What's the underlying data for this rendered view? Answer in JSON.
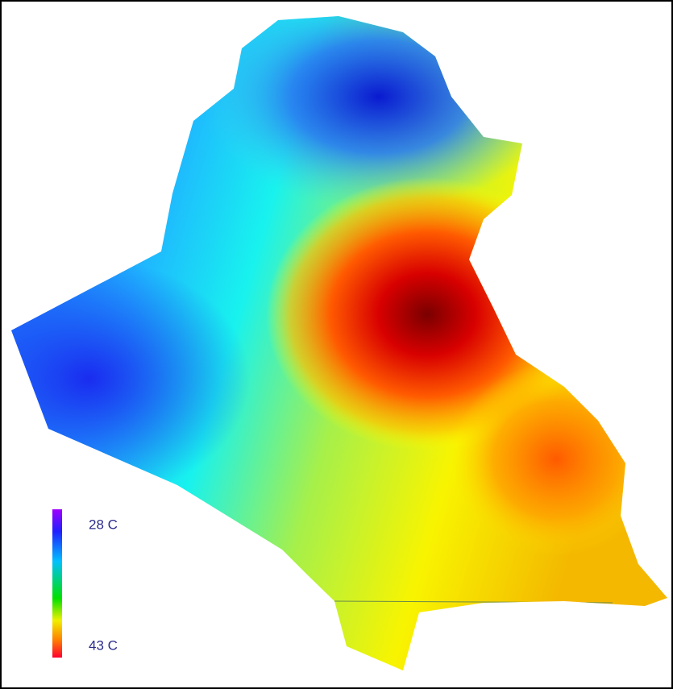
{
  "legend": {
    "min_label": "28 C",
    "max_label": "43 C"
  }
}
